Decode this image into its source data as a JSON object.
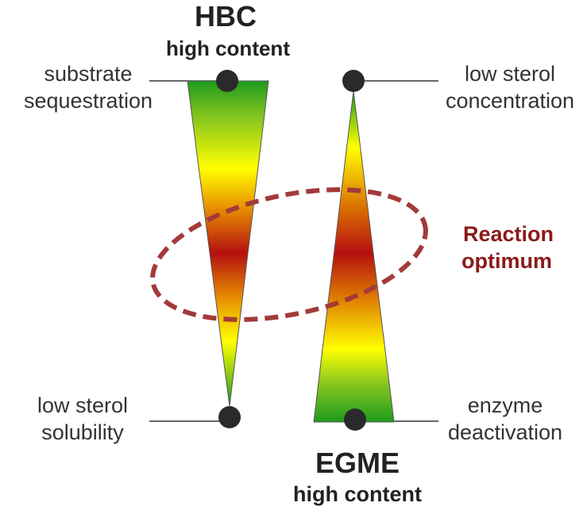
{
  "top": {
    "title": "HBC",
    "subtitle": "high content"
  },
  "bottom": {
    "title": "EGME",
    "subtitle": "high content"
  },
  "labels": {
    "top_left": [
      "substrate",
      "sequestration"
    ],
    "top_right": [
      "low sterol",
      "concentration"
    ],
    "bottom_left": [
      "low sterol",
      "solubility"
    ],
    "bottom_right": [
      "enzyme",
      "deactivation"
    ]
  },
  "optimum": [
    "Reaction",
    "optimum"
  ],
  "colors": {
    "green": "#1e9a1e",
    "yellow": "#ffff00",
    "orange": "#e08000",
    "red": "#b41010",
    "ellipse": "#a33a3a",
    "optimum_text": "#8b1a1a",
    "marker": "#2a2a2a",
    "leader_line": "#333333"
  }
}
